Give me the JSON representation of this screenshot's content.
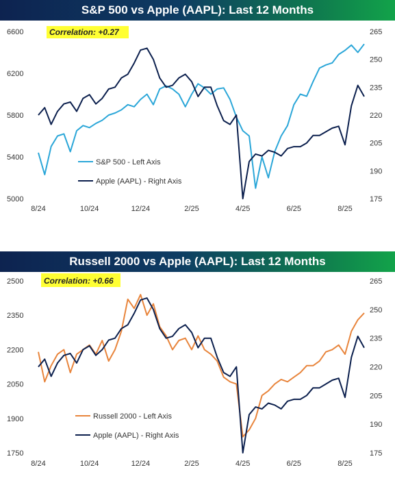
{
  "chart_data": [
    {
      "type": "line",
      "title": "S&P 500 vs Apple (AAPL): Last 12 Months",
      "annotation": "Correlation: +0.27",
      "x_tick_labels": [
        "8/24",
        "10/24",
        "12/24",
        "2/25",
        "4/25",
        "6/25",
        "8/25"
      ],
      "left_axis": {
        "ylim": [
          5000,
          6600
        ],
        "ticks": [
          5000,
          5400,
          5800,
          6200,
          6600
        ]
      },
      "right_axis": {
        "ylim": [
          175,
          265
        ],
        "ticks": [
          175,
          190,
          205,
          220,
          235,
          250,
          265
        ]
      },
      "x": [
        0,
        0.25,
        0.5,
        0.75,
        1,
        1.25,
        1.5,
        1.75,
        2,
        2.25,
        2.5,
        2.75,
        3,
        3.25,
        3.5,
        3.75,
        4,
        4.25,
        4.5,
        4.75,
        5,
        5.25,
        5.5,
        5.75,
        6,
        6.25,
        6.5,
        6.75,
        7,
        7.25,
        7.5,
        7.75,
        8,
        8.25,
        8.5,
        8.75,
        9,
        9.25,
        9.5,
        9.75,
        10,
        10.25,
        10.5,
        10.75,
        11,
        11.25,
        11.5,
        11.75,
        12,
        12.25,
        12.5,
        12.75
      ],
      "series": [
        {
          "name": "S&P 500 - Left Axis",
          "axis": "left",
          "color": "#2aa6d8",
          "values": [
            5440,
            5230,
            5500,
            5600,
            5620,
            5450,
            5650,
            5700,
            5680,
            5720,
            5750,
            5800,
            5820,
            5850,
            5900,
            5880,
            5950,
            6000,
            5900,
            6050,
            6080,
            6050,
            6000,
            5880,
            6000,
            6100,
            6060,
            6000,
            6050,
            6060,
            5950,
            5780,
            5650,
            5600,
            5100,
            5400,
            5200,
            5450,
            5600,
            5700,
            5900,
            6000,
            5980,
            6120,
            6250,
            6280,
            6300,
            6380,
            6420,
            6470,
            6400,
            6480
          ]
        },
        {
          "name": "Apple (AAPL) - Right Axis",
          "axis": "right",
          "color": "#0b1f4d",
          "values": [
            220,
            224,
            215,
            222,
            226,
            227,
            222,
            229,
            231,
            226,
            229,
            234,
            235,
            240,
            242,
            248,
            255,
            256,
            250,
            240,
            235,
            236,
            240,
            242,
            238,
            230,
            235,
            235,
            225,
            217,
            215,
            220,
            175,
            195,
            199,
            198,
            201,
            200,
            198,
            202,
            203,
            203,
            205,
            209,
            209,
            211,
            213,
            214,
            204,
            225,
            236,
            230
          ]
        }
      ]
    },
    {
      "type": "line",
      "title": "Russell 2000 vs Apple (AAPL): Last 12 Months",
      "annotation": "Correlation: +0.66",
      "x_tick_labels": [
        "8/24",
        "10/24",
        "12/24",
        "2/25",
        "4/25",
        "6/25",
        "8/25"
      ],
      "left_axis": {
        "ylim": [
          1750,
          2500
        ],
        "ticks": [
          1750,
          1900,
          2050,
          2200,
          2350,
          2500
        ]
      },
      "right_axis": {
        "ylim": [
          175,
          265
        ],
        "ticks": [
          175,
          190,
          205,
          220,
          235,
          250,
          265
        ]
      },
      "x": [
        0,
        0.25,
        0.5,
        0.75,
        1,
        1.25,
        1.5,
        1.75,
        2,
        2.25,
        2.5,
        2.75,
        3,
        3.25,
        3.5,
        3.75,
        4,
        4.25,
        4.5,
        4.75,
        5,
        5.25,
        5.5,
        5.75,
        6,
        6.25,
        6.5,
        6.75,
        7,
        7.25,
        7.5,
        7.75,
        8,
        8.25,
        8.5,
        8.75,
        9,
        9.25,
        9.5,
        9.75,
        10,
        10.25,
        10.5,
        10.75,
        11,
        11.25,
        11.5,
        11.75,
        12,
        12.25,
        12.5,
        12.75
      ],
      "series": [
        {
          "name": "Russell 2000 - Left Axis",
          "axis": "left",
          "color": "#e8843b",
          "values": [
            2190,
            2060,
            2130,
            2180,
            2200,
            2100,
            2180,
            2200,
            2220,
            2180,
            2240,
            2150,
            2200,
            2280,
            2420,
            2380,
            2440,
            2350,
            2400,
            2300,
            2260,
            2200,
            2240,
            2250,
            2200,
            2260,
            2200,
            2180,
            2150,
            2080,
            2060,
            2050,
            1820,
            1850,
            1900,
            2000,
            2020,
            2050,
            2070,
            2060,
            2080,
            2100,
            2130,
            2130,
            2150,
            2190,
            2200,
            2220,
            2180,
            2280,
            2330,
            2360
          ]
        },
        {
          "name": "Apple (AAPL) - Right Axis",
          "axis": "right",
          "color": "#0b1f4d",
          "values": [
            220,
            224,
            215,
            222,
            226,
            227,
            222,
            229,
            231,
            226,
            229,
            234,
            235,
            240,
            242,
            248,
            255,
            256,
            250,
            240,
            235,
            236,
            240,
            242,
            238,
            230,
            235,
            235,
            225,
            217,
            215,
            220,
            175,
            195,
            199,
            198,
            201,
            200,
            198,
            202,
            203,
            203,
            205,
            209,
            209,
            211,
            213,
            214,
            204,
            225,
            236,
            230
          ]
        }
      ]
    }
  ]
}
